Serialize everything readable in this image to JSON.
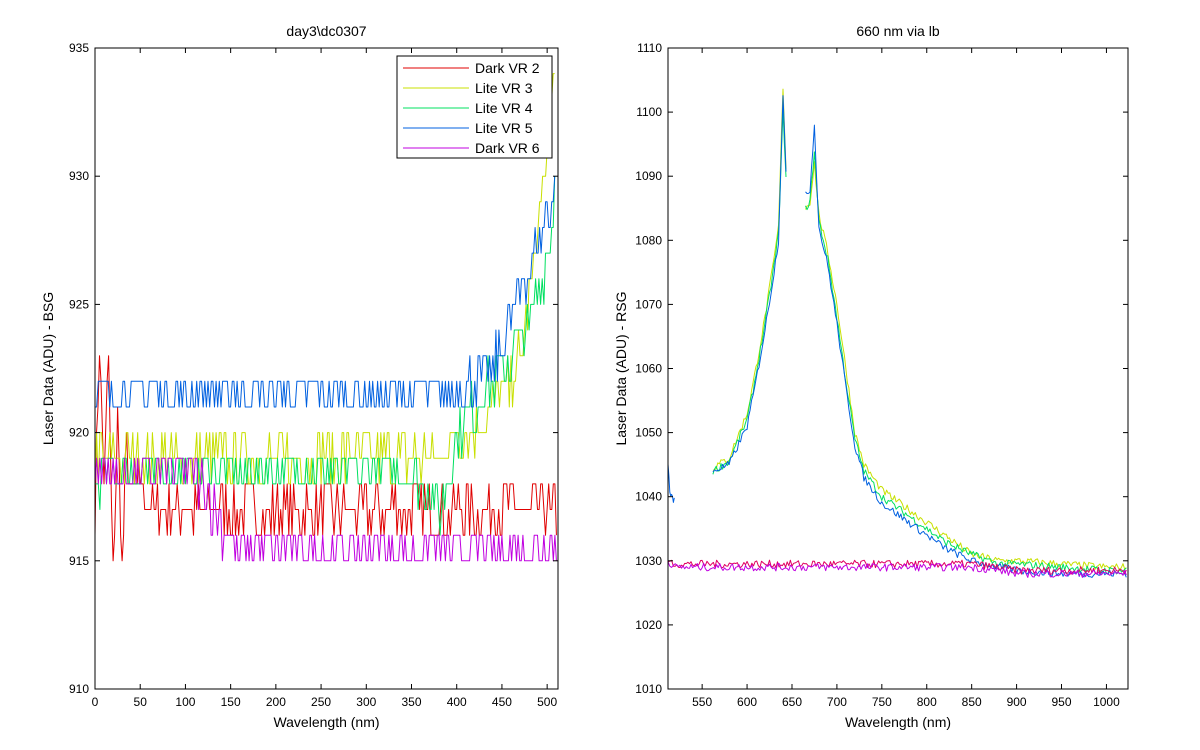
{
  "chart_data": [
    {
      "type": "line",
      "title": "day3\\dc0307",
      "xlabel": "Wavelength (nm)",
      "ylabel": "Laser Data (ADU) - BSG",
      "xlim": [
        0,
        512
      ],
      "ylim": [
        910,
        935
      ],
      "xticks": [
        0,
        50,
        100,
        150,
        200,
        250,
        300,
        350,
        400,
        450,
        500
      ],
      "yticks": [
        910,
        915,
        920,
        925,
        930,
        935
      ],
      "grid": false,
      "legend_position": "top-right",
      "series": [
        {
          "name": "Dark VR 2",
          "color": "#e00000",
          "x": [
            0,
            5,
            10,
            15,
            20,
            25,
            30,
            35,
            40,
            50,
            60,
            80,
            100,
            150,
            200,
            250,
            300,
            350,
            400,
            450,
            500,
            512
          ],
          "y": [
            917,
            924,
            918,
            923,
            914,
            921,
            915,
            919,
            917,
            918,
            917,
            917,
            917,
            917,
            917,
            917,
            917,
            917,
            917,
            917,
            917,
            917
          ]
        },
        {
          "name": "Lite VR 3",
          "color": "#c8e000",
          "x": [
            0,
            20,
            40,
            60,
            100,
            150,
            200,
            250,
            300,
            350,
            380,
            400,
            420,
            440,
            460,
            470,
            480,
            490,
            500,
            505,
            510
          ],
          "y": [
            919,
            919,
            919,
            919,
            919,
            919,
            919,
            919,
            919,
            919,
            919,
            920,
            920,
            921,
            922,
            923,
            925,
            928,
            931,
            933,
            935
          ]
        },
        {
          "name": "Lite VR 4",
          "color": "#00e060",
          "x": [
            0,
            20,
            40,
            60,
            100,
            150,
            200,
            250,
            300,
            350,
            370,
            380,
            390,
            400,
            420,
            440,
            460,
            480,
            500,
            510
          ],
          "y": [
            918,
            918.5,
            918.5,
            918.5,
            918.5,
            918.5,
            918.5,
            918.5,
            918.5,
            918.5,
            918,
            917,
            918,
            920,
            921,
            922,
            923,
            924,
            927,
            930
          ]
        },
        {
          "name": "Lite VR 5",
          "color": "#0060e0",
          "x": [
            0,
            20,
            40,
            60,
            100,
            150,
            200,
            250,
            300,
            350,
            400,
            420,
            440,
            450,
            460,
            470,
            480,
            490,
            500,
            510
          ],
          "y": [
            921.5,
            921.5,
            921.5,
            921.5,
            921.5,
            921.5,
            921.5,
            921.5,
            921.5,
            921.5,
            921.5,
            922,
            922.5,
            923.5,
            924.5,
            925.5,
            926.5,
            927.5,
            928.5,
            930
          ]
        },
        {
          "name": "Dark VR 6",
          "color": "#c000e0",
          "x": [
            0,
            20,
            40,
            60,
            100,
            120,
            130,
            150,
            160,
            200,
            250,
            300,
            350,
            400,
            450,
            500,
            512
          ],
          "y": [
            918.5,
            918.5,
            918.5,
            918.5,
            918.5,
            918,
            917,
            916,
            915.5,
            915.5,
            915.5,
            915.5,
            915.5,
            915.5,
            915.5,
            915.5,
            915.5
          ]
        }
      ],
      "legend": [
        "Dark VR 2",
        "Lite VR 3",
        "Lite VR 4",
        "Lite VR 5",
        "Dark VR 6"
      ]
    },
    {
      "type": "line",
      "title": "660 nm via lb",
      "xlabel": "Wavelength (nm)",
      "ylabel": "Laser Data (ADU) - RSG",
      "xlim": [
        512,
        1024
      ],
      "ylim": [
        1010,
        1110
      ],
      "xticks": [
        550,
        600,
        650,
        700,
        750,
        800,
        850,
        900,
        950,
        1000
      ],
      "yticks": [
        1010,
        1020,
        1030,
        1040,
        1050,
        1060,
        1070,
        1080,
        1090,
        1100,
        1110
      ],
      "grid": false,
      "series": [
        {
          "name": "",
          "color": "#c8e000",
          "x": [
            562,
            580,
            600,
            610,
            620,
            630,
            635,
            640,
            645,
            650,
            655,
            660,
            665,
            670,
            675,
            680,
            690,
            700,
            710,
            720,
            730,
            750,
            780,
            800,
            820,
            850,
            880,
            900,
            950,
            1000,
            1024
          ],
          "y": [
            1044.5,
            1046,
            1053,
            1060,
            1068,
            1077,
            1082,
            1104,
            1085,
            null,
            null,
            null,
            1085,
            1086,
            1092,
            1084,
            1078,
            1070,
            1060,
            1050,
            1045,
            1041,
            1038,
            1036,
            1034,
            1031,
            1030,
            1030,
            1029.5,
            1029,
            1029
          ]
        },
        {
          "name": "",
          "color": "#00e060",
          "x": [
            562,
            580,
            600,
            610,
            620,
            630,
            635,
            640,
            645,
            650,
            655,
            660,
            665,
            670,
            675,
            680,
            690,
            700,
            710,
            720,
            730,
            750,
            780,
            800,
            820,
            850,
            880,
            900,
            950,
            1000,
            1024
          ],
          "y": [
            1044,
            1045.5,
            1052,
            1059,
            1067,
            1076,
            1081,
            1100,
            1084,
            null,
            null,
            null,
            1085,
            1086,
            1094,
            1083,
            1077,
            1068,
            1058,
            1049,
            1044,
            1040,
            1037,
            1035,
            1033,
            1031,
            1029.5,
            1029.5,
            1029,
            1028.5,
            1028.5
          ]
        },
        {
          "name": "",
          "color": "#0060e0",
          "x": [
            562,
            580,
            600,
            610,
            620,
            630,
            635,
            640,
            645,
            650,
            655,
            660,
            665,
            670,
            675,
            680,
            690,
            700,
            710,
            720,
            730,
            750,
            780,
            800,
            820,
            850,
            880,
            900,
            950,
            1000,
            1024
          ],
          "y": [
            1044,
            1045,
            1051,
            1058,
            1066,
            1075,
            1080,
            1103,
            1084,
            null,
            null,
            null,
            1087,
            1088,
            1098,
            1082,
            1076,
            1067,
            1057,
            1048,
            1043,
            1039,
            1036,
            1034,
            1032,
            1030,
            1029,
            1028.5,
            1028,
            1028,
            1028
          ]
        },
        {
          "name": "",
          "color": "#0060e0",
          "x": [
            512,
            514,
            516,
            518,
            520
          ],
          "y": [
            1045,
            1041,
            1040,
            1039.5,
            1039
          ]
        },
        {
          "name": "",
          "color": "#e00060",
          "x": [
            512,
            520,
            550,
            600,
            650,
            700,
            750,
            800,
            850,
            880,
            900,
            950,
            1000,
            1024
          ],
          "y": [
            1030,
            1029.5,
            1029.5,
            1029.5,
            1029.5,
            1029.5,
            1029.5,
            1029.5,
            1029.5,
            1029,
            1028.5,
            1028.5,
            1028.5,
            1028.5
          ]
        },
        {
          "name": "",
          "color": "#c000e0",
          "x": [
            512,
            520,
            550,
            600,
            650,
            700,
            750,
            800,
            850,
            880,
            900,
            950,
            1000,
            1024
          ],
          "y": [
            1030,
            1029,
            1029,
            1029,
            1029,
            1029,
            1029,
            1029,
            1029,
            1028.5,
            1028,
            1028,
            1028,
            1028
          ]
        }
      ]
    }
  ]
}
